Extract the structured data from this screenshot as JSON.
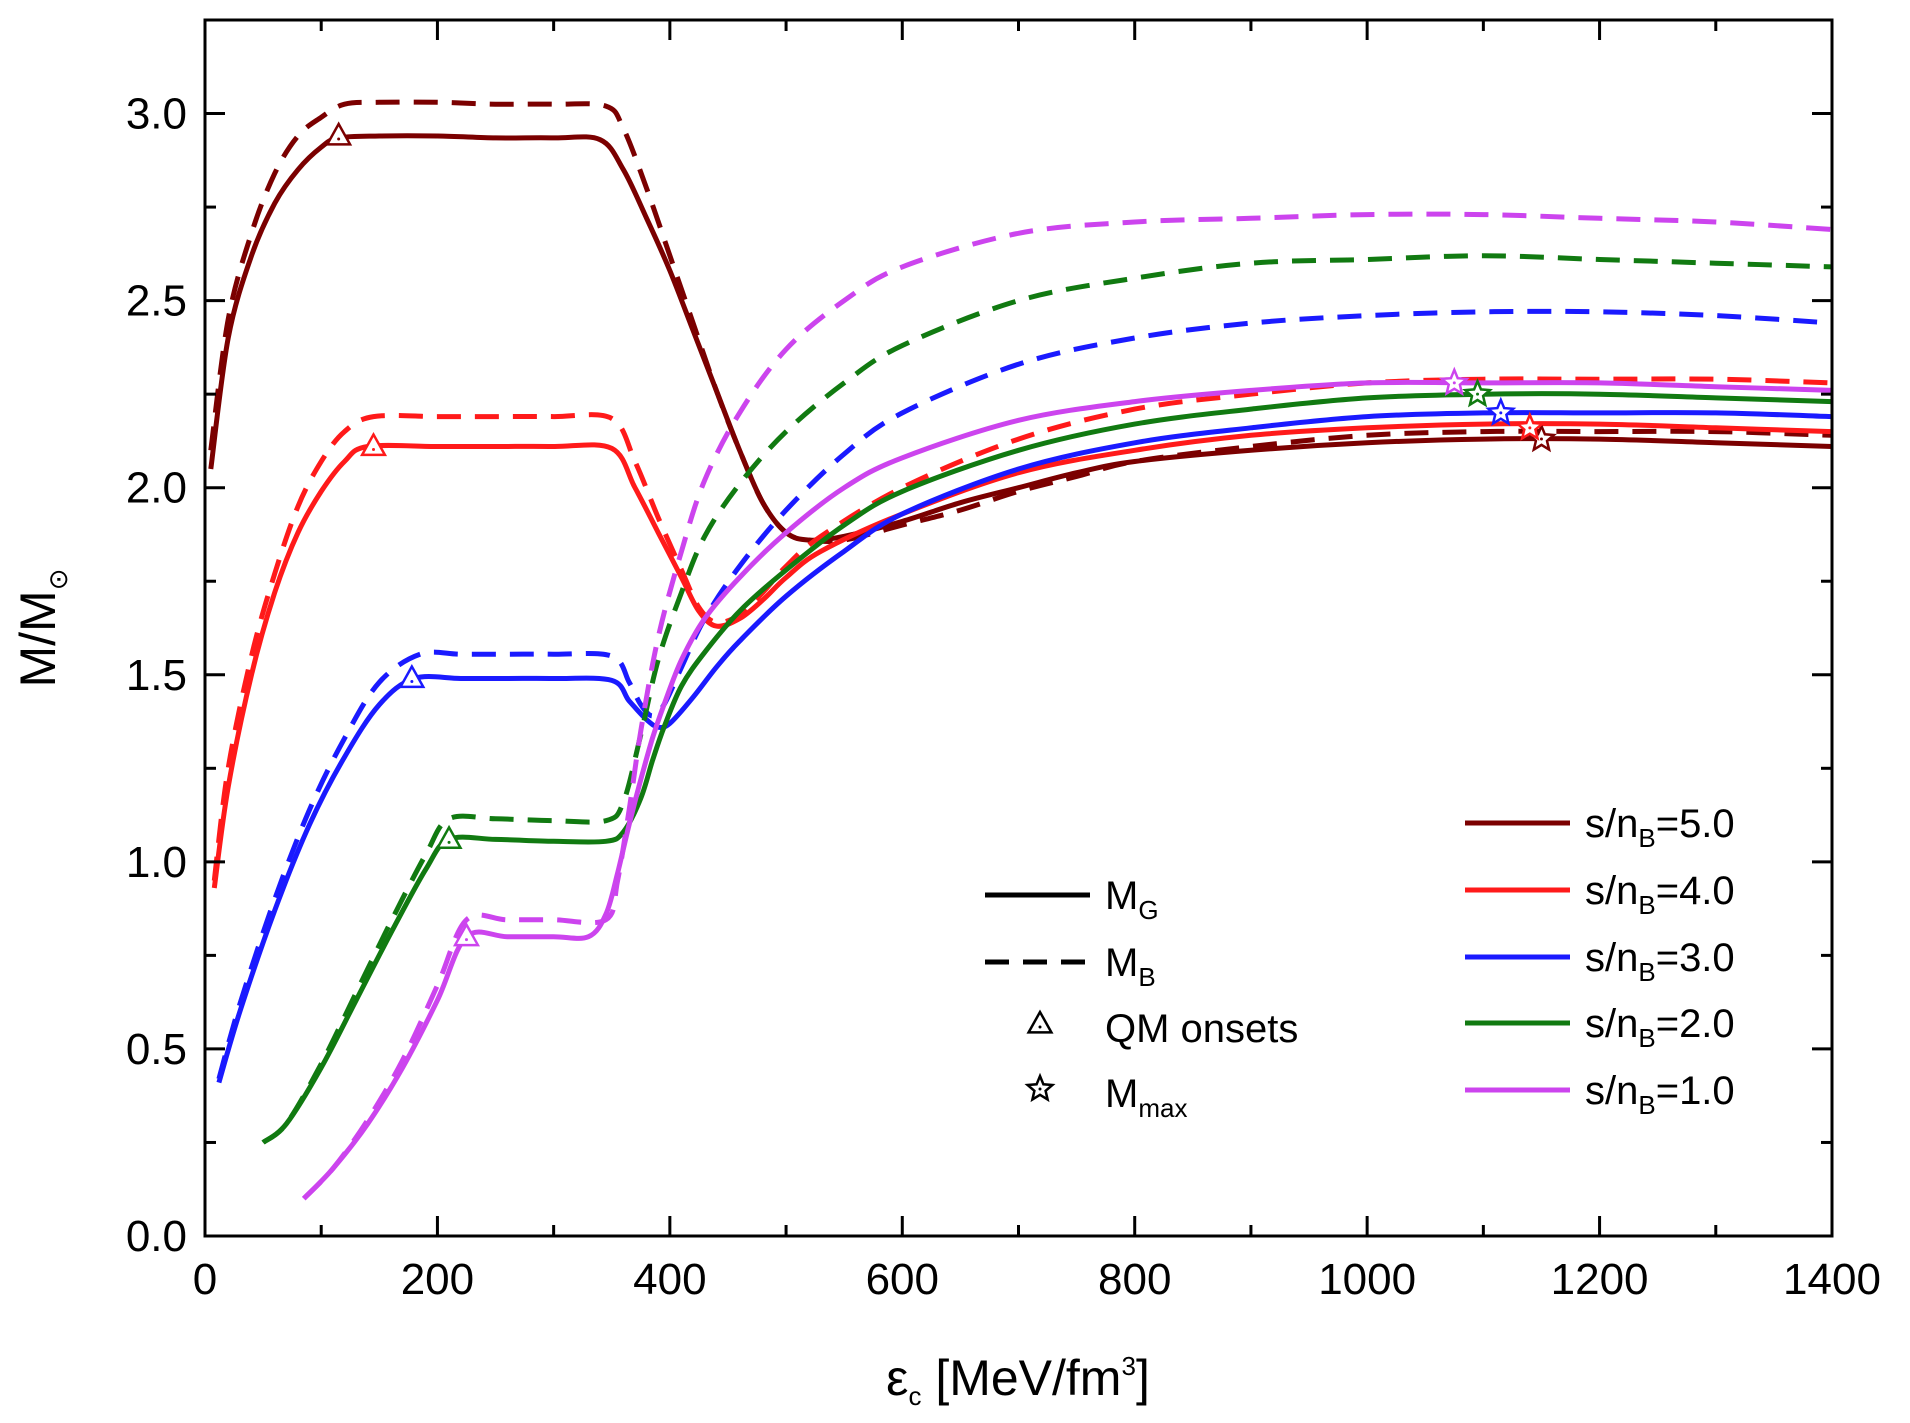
{
  "chart_data": {
    "type": "line",
    "title": "",
    "xlabel": "εc [MeV/fm3]",
    "xlabel_parts": {
      "main": "ε",
      "sub": "c",
      "rest": " [MeV/fm",
      "sup": "3",
      "end": "]"
    },
    "ylabel": "M/M⊙",
    "ylabel_parts": {
      "main": "M/M",
      "sub": "⊙"
    },
    "xlim": [
      0,
      1400
    ],
    "ylim": [
      0,
      3.25
    ],
    "xticks": [
      "0",
      "200",
      "400",
      "600",
      "800",
      "1000",
      "1200",
      "1400"
    ],
    "xtick_values": [
      0,
      200,
      400,
      600,
      800,
      1000,
      1200,
      1400
    ],
    "yticks": [
      "0.0",
      "0.5",
      "1.0",
      "1.5",
      "2.0",
      "2.5",
      "3.0"
    ],
    "ytick_values": [
      0,
      0.5,
      1.0,
      1.5,
      2.0,
      2.5,
      3.0
    ],
    "grid": false,
    "legend_style": {
      "placement": "bottom-center",
      "entries": [
        {
          "label": "M",
          "sub": "G",
          "style": "solid"
        },
        {
          "label": "M",
          "sub": "B",
          "style": "dashed"
        },
        {
          "label": "QM onsets",
          "sub": "",
          "style": "triangle"
        },
        {
          "label": "M",
          "sub": "max",
          "style": "star"
        }
      ]
    },
    "legend_series": {
      "placement": "bottom-right",
      "entries": [
        {
          "label": "s/n",
          "sub": "B",
          "rest": "=5.0",
          "color": "#7b0000"
        },
        {
          "label": "s/n",
          "sub": "B",
          "rest": "=4.0",
          "color": "#ff1a1a"
        },
        {
          "label": "s/n",
          "sub": "B",
          "rest": "=3.0",
          "color": "#1a1aff"
        },
        {
          "label": "s/n",
          "sub": "B",
          "rest": "=2.0",
          "color": "#117a11"
        },
        {
          "label": "s/n",
          "sub": "B",
          "rest": "=1.0",
          "color": "#cc44ee"
        }
      ]
    },
    "series": [
      {
        "name": "s/nB=5.0 MG",
        "color": "#7b0000",
        "style": "solid",
        "x": [
          5,
          20,
          40,
          60,
          80,
          100,
          115,
          150,
          200,
          250,
          300,
          340,
          360,
          380,
          400,
          420,
          440,
          460,
          480,
          500,
          520,
          550,
          600,
          650,
          700,
          750,
          800,
          900,
          1000,
          1100,
          1200,
          1300,
          1400
        ],
        "y": [
          2.05,
          2.4,
          2.62,
          2.76,
          2.85,
          2.91,
          2.935,
          2.94,
          2.94,
          2.935,
          2.935,
          2.93,
          2.85,
          2.72,
          2.58,
          2.42,
          2.26,
          2.1,
          1.96,
          1.88,
          1.86,
          1.87,
          1.91,
          1.96,
          2.0,
          2.04,
          2.07,
          2.1,
          2.12,
          2.13,
          2.13,
          2.12,
          2.11
        ]
      },
      {
        "name": "s/nB=5.0 MB",
        "color": "#7b0000",
        "style": "dashed",
        "x": [
          5,
          20,
          40,
          60,
          80,
          100,
          120,
          150,
          200,
          250,
          300,
          345,
          360,
          380,
          400,
          420,
          440,
          460,
          480,
          500,
          520,
          550,
          600,
          650,
          700,
          750,
          800,
          900,
          1000,
          1100,
          1200,
          1300,
          1400
        ],
        "y": [
          2.1,
          2.45,
          2.68,
          2.84,
          2.94,
          2.99,
          3.025,
          3.03,
          3.03,
          3.025,
          3.025,
          3.02,
          2.96,
          2.8,
          2.62,
          2.44,
          2.26,
          2.1,
          1.96,
          1.88,
          1.86,
          1.86,
          1.9,
          1.94,
          1.99,
          2.03,
          2.07,
          2.11,
          2.14,
          2.15,
          2.15,
          2.15,
          2.14
        ]
      },
      {
        "name": "s/nB=4.0 MG",
        "color": "#ff1a1a",
        "style": "solid",
        "x": [
          8,
          20,
          40,
          60,
          80,
          100,
          120,
          140,
          200,
          250,
          300,
          350,
          370,
          390,
          410,
          425,
          440,
          460,
          480,
          500,
          530,
          600,
          700,
          800,
          900,
          1000,
          1100,
          1200,
          1300,
          1400
        ],
        "y": [
          0.93,
          1.2,
          1.5,
          1.72,
          1.88,
          1.99,
          2.07,
          2.11,
          2.11,
          2.11,
          2.11,
          2.105,
          2.0,
          1.88,
          1.76,
          1.67,
          1.63,
          1.65,
          1.7,
          1.76,
          1.83,
          1.93,
          2.04,
          2.1,
          2.14,
          2.16,
          2.17,
          2.17,
          2.16,
          2.15
        ]
      },
      {
        "name": "s/nB=4.0 MB",
        "color": "#ff1a1a",
        "style": "dashed",
        "x": [
          8,
          20,
          40,
          60,
          80,
          100,
          120,
          145,
          200,
          250,
          300,
          350,
          370,
          390,
          410,
          425,
          440,
          460,
          480,
          500,
          530,
          600,
          700,
          800,
          900,
          1000,
          1100,
          1200,
          1300,
          1400
        ],
        "y": [
          0.95,
          1.25,
          1.55,
          1.77,
          1.95,
          2.07,
          2.15,
          2.19,
          2.19,
          2.19,
          2.19,
          2.185,
          2.07,
          1.92,
          1.78,
          1.68,
          1.64,
          1.66,
          1.72,
          1.79,
          1.87,
          2.0,
          2.13,
          2.21,
          2.25,
          2.28,
          2.29,
          2.29,
          2.29,
          2.28
        ]
      },
      {
        "name": "s/nB=3.0 MG",
        "color": "#1a1aff",
        "style": "solid",
        "x": [
          12,
          30,
          60,
          90,
          120,
          150,
          180,
          220,
          260,
          300,
          350,
          365,
          380,
          390,
          400,
          420,
          440,
          460,
          500,
          550,
          600,
          700,
          800,
          900,
          1000,
          1100,
          1200,
          1300,
          1400
        ],
        "y": [
          0.41,
          0.6,
          0.87,
          1.1,
          1.28,
          1.42,
          1.49,
          1.49,
          1.49,
          1.49,
          1.485,
          1.43,
          1.38,
          1.36,
          1.37,
          1.44,
          1.52,
          1.59,
          1.71,
          1.83,
          1.93,
          2.05,
          2.12,
          2.16,
          2.19,
          2.2,
          2.2,
          2.2,
          2.19
        ]
      },
      {
        "name": "s/nB=3.0 MB",
        "color": "#1a1aff",
        "style": "dashed",
        "x": [
          12,
          30,
          60,
          90,
          120,
          150,
          185,
          220,
          260,
          300,
          350,
          365,
          375,
          385,
          395,
          410,
          430,
          460,
          500,
          550,
          600,
          700,
          800,
          900,
          1000,
          1100,
          1200,
          1300,
          1400
        ],
        "y": [
          0.42,
          0.62,
          0.9,
          1.14,
          1.33,
          1.48,
          1.555,
          1.555,
          1.555,
          1.555,
          1.55,
          1.48,
          1.42,
          1.39,
          1.42,
          1.52,
          1.65,
          1.79,
          1.94,
          2.09,
          2.2,
          2.33,
          2.4,
          2.44,
          2.46,
          2.47,
          2.47,
          2.46,
          2.44
        ]
      },
      {
        "name": "s/nB=2.0 MG",
        "color": "#117a11",
        "style": "solid",
        "x": [
          50,
          70,
          100,
          130,
          160,
          190,
          210,
          250,
          300,
          345,
          360,
          375,
          385,
          395,
          410,
          430,
          460,
          500,
          550,
          600,
          700,
          800,
          900,
          1000,
          1100,
          1200,
          1300,
          1400
        ],
        "y": [
          0.25,
          0.3,
          0.45,
          0.63,
          0.81,
          0.98,
          1.06,
          1.06,
          1.055,
          1.055,
          1.08,
          1.17,
          1.27,
          1.36,
          1.47,
          1.56,
          1.67,
          1.78,
          1.9,
          1.99,
          2.1,
          2.17,
          2.21,
          2.24,
          2.25,
          2.25,
          2.24,
          2.23
        ]
      },
      {
        "name": "s/nB=2.0 MB",
        "color": "#117a11",
        "style": "dashed",
        "x": [
          50,
          70,
          100,
          130,
          160,
          190,
          210,
          250,
          300,
          345,
          360,
          375,
          390,
          410,
          430,
          460,
          500,
          550,
          600,
          700,
          800,
          900,
          1000,
          1100,
          1200,
          1300,
          1400
        ],
        "y": [
          0.25,
          0.3,
          0.46,
          0.65,
          0.84,
          1.02,
          1.115,
          1.115,
          1.11,
          1.11,
          1.16,
          1.34,
          1.54,
          1.72,
          1.87,
          2.01,
          2.15,
          2.28,
          2.38,
          2.5,
          2.56,
          2.6,
          2.61,
          2.62,
          2.61,
          2.6,
          2.59
        ]
      },
      {
        "name": "s/nB=1.0 MG",
        "color": "#cc44ee",
        "style": "solid",
        "x": [
          85,
          110,
          140,
          170,
          200,
          225,
          260,
          300,
          330,
          345,
          355,
          365,
          375,
          385,
          395,
          410,
          430,
          460,
          500,
          550,
          600,
          700,
          800,
          900,
          1000,
          1100,
          1200,
          1300,
          1400
        ],
        "y": [
          0.1,
          0.18,
          0.3,
          0.45,
          0.63,
          0.8,
          0.8,
          0.8,
          0.8,
          0.86,
          0.97,
          1.1,
          1.22,
          1.33,
          1.42,
          1.54,
          1.65,
          1.76,
          1.88,
          2.0,
          2.08,
          2.18,
          2.23,
          2.26,
          2.28,
          2.28,
          2.28,
          2.27,
          2.26
        ]
      },
      {
        "name": "s/nB=1.0 MB",
        "color": "#cc44ee",
        "style": "dashed",
        "x": [
          85,
          110,
          140,
          170,
          200,
          225,
          260,
          300,
          345,
          355,
          365,
          375,
          390,
          410,
          430,
          460,
          500,
          550,
          600,
          700,
          800,
          900,
          1000,
          1100,
          1200,
          1300,
          1400
        ],
        "y": [
          0.1,
          0.18,
          0.31,
          0.47,
          0.67,
          0.845,
          0.845,
          0.845,
          0.845,
          0.95,
          1.14,
          1.35,
          1.6,
          1.83,
          2.02,
          2.2,
          2.37,
          2.5,
          2.59,
          2.68,
          2.71,
          2.72,
          2.73,
          2.73,
          2.72,
          2.71,
          2.69
        ]
      }
    ],
    "qm_onsets": [
      {
        "series": "s/nB=5.0",
        "x": 115,
        "y": 2.94,
        "color": "#7b0000"
      },
      {
        "series": "s/nB=4.0",
        "x": 145,
        "y": 2.11,
        "color": "#ff1a1a"
      },
      {
        "series": "s/nB=3.0",
        "x": 178,
        "y": 1.49,
        "color": "#1a1aff"
      },
      {
        "series": "s/nB=2.0",
        "x": 210,
        "y": 1.06,
        "color": "#117a11"
      },
      {
        "series": "s/nB=1.0",
        "x": 225,
        "y": 0.8,
        "color": "#cc44ee"
      }
    ],
    "m_max": [
      {
        "series": "s/nB=5.0",
        "x": 1150,
        "y": 2.13,
        "color": "#7b0000"
      },
      {
        "series": "s/nB=4.0",
        "x": 1140,
        "y": 2.16,
        "color": "#ff1a1a"
      },
      {
        "series": "s/nB=3.0",
        "x": 1115,
        "y": 2.2,
        "color": "#1a1aff"
      },
      {
        "series": "s/nB=2.0",
        "x": 1095,
        "y": 2.25,
        "color": "#117a11"
      },
      {
        "series": "s/nB=1.0",
        "x": 1075,
        "y": 2.28,
        "color": "#cc44ee"
      }
    ]
  }
}
